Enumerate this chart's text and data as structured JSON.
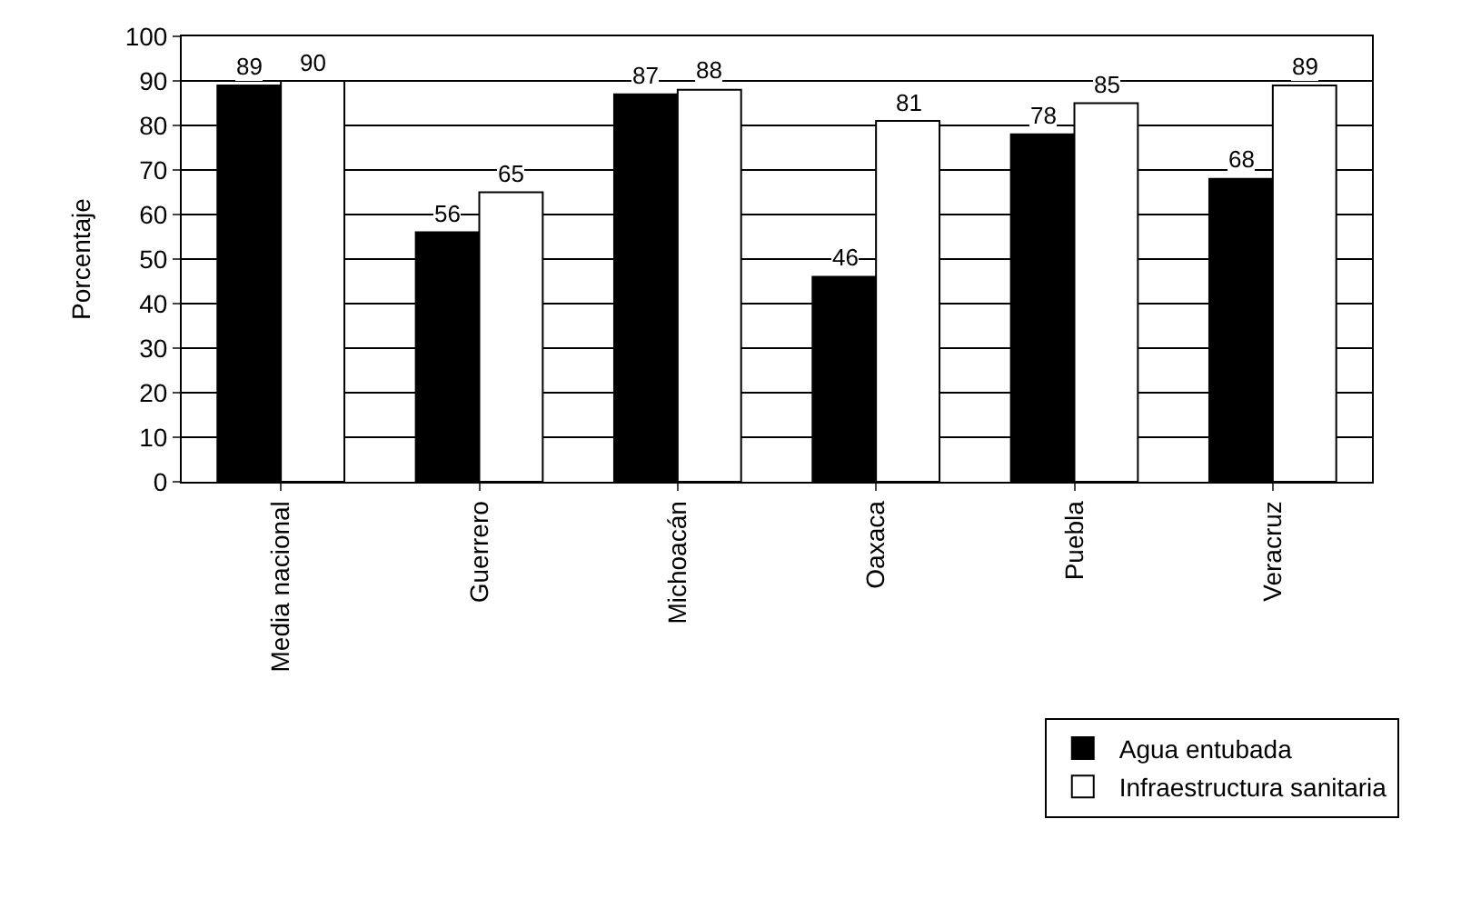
{
  "chart_data": {
    "type": "bar",
    "ylabel": "Porcentaje",
    "categories": [
      "Media nacional",
      "Guerrero",
      "Michoacán",
      "Oaxaca",
      "Puebla",
      "Veracruz"
    ],
    "series": [
      {
        "name": "Agua entubada",
        "color": "#000000",
        "values": [
          89,
          56,
          87,
          46,
          78,
          68
        ]
      },
      {
        "name": "Infraestructura sanitaria",
        "color": "#ffffff",
        "values": [
          90,
          65,
          88,
          81,
          85,
          89
        ]
      }
    ],
    "ylim": [
      0,
      100
    ],
    "yticks": [
      0,
      10,
      20,
      30,
      40,
      50,
      60,
      70,
      80,
      90,
      100
    ],
    "grid": "y",
    "legend": "bottom right",
    "data_labels": true
  }
}
